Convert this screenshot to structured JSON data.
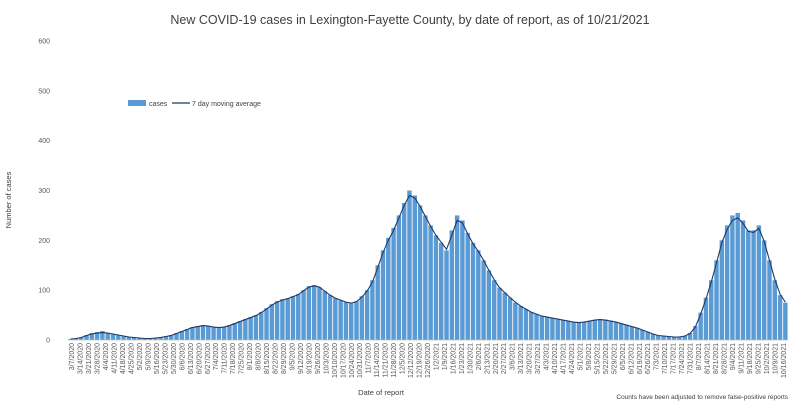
{
  "chart_data": {
    "type": "bar",
    "title": "New COVID-19 cases in Lexington-Fayette County, by date of report, as of 10/21/2021",
    "xlabel": "Date of report",
    "ylabel": "Number of cases",
    "ylim": [
      0,
      600
    ],
    "yticks": [
      0,
      100,
      200,
      300,
      400,
      500,
      600
    ],
    "grid": false,
    "legend_position": "top-left",
    "footnote": "Counts have been adjusted to remove false-positive reports",
    "colors": {
      "bars": "#5b9bd5",
      "line": "#1f3864"
    },
    "x_tick_labels": [
      "3/7/2020",
      "3/14/2020",
      "3/21/2020",
      "3/28/2020",
      "4/4/2020",
      "4/11/2020",
      "4/18/2020",
      "4/25/2020",
      "5/2/2020",
      "5/9/2020",
      "5/16/2020",
      "5/23/2020",
      "5/30/2020",
      "6/6/2020",
      "6/13/2020",
      "6/20/2020",
      "6/27/2020",
      "7/4/2020",
      "7/11/2020",
      "7/18/2020",
      "7/25/2020",
      "8/1/2020",
      "8/8/2020",
      "8/15/2020",
      "8/22/2020",
      "8/29/2020",
      "9/5/2020",
      "9/12/2020",
      "9/19/2020",
      "9/26/2020",
      "10/3/2020",
      "10/10/2020",
      "10/17/2020",
      "10/24/2020",
      "10/31/2020",
      "11/7/2020",
      "11/14/2020",
      "11/21/2020",
      "11/28/2020",
      "12/5/2020",
      "12/12/2020",
      "12/19/2020",
      "12/26/2020",
      "1/2/2021",
      "1/9/2021",
      "1/16/2021",
      "1/23/2021",
      "1/30/2021",
      "2/6/2021",
      "2/13/2021",
      "2/20/2021",
      "2/27/2021",
      "3/6/2021",
      "3/13/2021",
      "3/20/2021",
      "3/27/2021",
      "4/3/2021",
      "4/10/2021",
      "4/17/2021",
      "4/24/2021",
      "5/1/2021",
      "5/8/2021",
      "5/15/2021",
      "5/22/2021",
      "5/29/2021",
      "6/5/2021",
      "6/12/2021",
      "6/19/2021",
      "6/26/2021",
      "7/3/2021",
      "7/10/2021",
      "7/17/2021",
      "7/24/2021",
      "7/31/2021",
      "8/7/2021",
      "8/14/2021",
      "8/21/2021",
      "8/28/2021",
      "9/4/2021",
      "9/11/2021",
      "9/18/2021",
      "9/25/2021",
      "10/2/2021",
      "10/9/2021",
      "10/16/2021"
    ],
    "series": [
      {
        "name": "cases",
        "type": "bar",
        "values": [
          2,
          3,
          5,
          10,
          14,
          16,
          18,
          14,
          12,
          10,
          8,
          6,
          5,
          4,
          3,
          3,
          4,
          6,
          8,
          10,
          14,
          18,
          22,
          26,
          28,
          30,
          28,
          26,
          24,
          26,
          30,
          34,
          38,
          42,
          46,
          50,
          56,
          64,
          72,
          78,
          82,
          84,
          88,
          92,
          100,
          108,
          110,
          106,
          98,
          90,
          84,
          80,
          76,
          74,
          78,
          88,
          100,
          120,
          150,
          180,
          205,
          225,
          250,
          275,
          300,
          290,
          270,
          250,
          230,
          210,
          195,
          180,
          220,
          250,
          240,
          215,
          195,
          180,
          160,
          140,
          120,
          105,
          95,
          85,
          75,
          68,
          62,
          56,
          52,
          48,
          46,
          44,
          42,
          40,
          38,
          36,
          35,
          36,
          38,
          40,
          42,
          41,
          39,
          36,
          33,
          30,
          27,
          24,
          20,
          16,
          12,
          9,
          8,
          7,
          6,
          6,
          8,
          14,
          28,
          55,
          85,
          120,
          160,
          200,
          230,
          250,
          255,
          240,
          220,
          220,
          230,
          200,
          160,
          120,
          90,
          75
        ]
      },
      {
        "name": "7 day moving average",
        "type": "line",
        "values": [
          2,
          3,
          5,
          9,
          12,
          14,
          15,
          14,
          12,
          10,
          8,
          6,
          5,
          4,
          3,
          3,
          4,
          5,
          7,
          9,
          13,
          17,
          21,
          25,
          27,
          29,
          28,
          26,
          25,
          26,
          29,
          33,
          37,
          41,
          45,
          49,
          55,
          62,
          70,
          76,
          80,
          83,
          87,
          91,
          99,
          106,
          109,
          106,
          98,
          90,
          84,
          80,
          76,
          74,
          77,
          86,
          98,
          116,
          145,
          175,
          200,
          220,
          245,
          270,
          290,
          285,
          268,
          248,
          228,
          210,
          196,
          182,
          210,
          240,
          235,
          213,
          193,
          178,
          160,
          140,
          121,
          105,
          95,
          85,
          76,
          68,
          62,
          56,
          52,
          48,
          46,
          44,
          42,
          40,
          38,
          36,
          35,
          36,
          38,
          40,
          41,
          40,
          38,
          36,
          33,
          30,
          27,
          24,
          20,
          16,
          12,
          9,
          8,
          7,
          6,
          6,
          8,
          13,
          26,
          52,
          82,
          116,
          155,
          195,
          222,
          240,
          245,
          234,
          218,
          216,
          224,
          198,
          160,
          122,
          92,
          76
        ]
      }
    ]
  }
}
